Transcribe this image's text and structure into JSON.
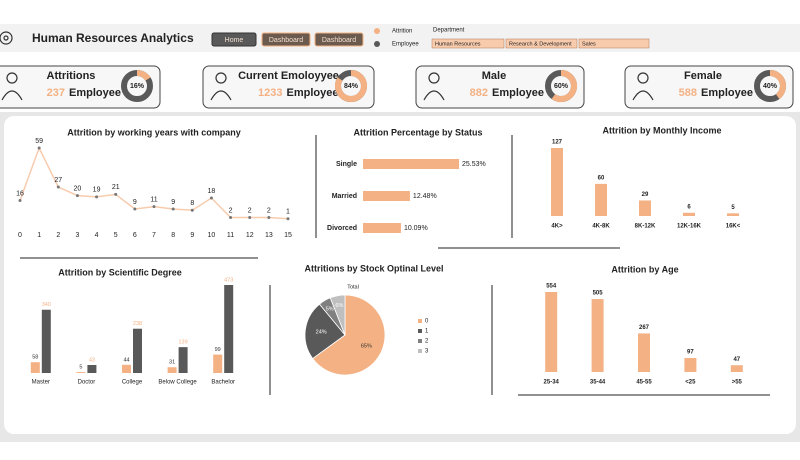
{
  "header": {
    "title": "Human Resources Analytics",
    "nav": [
      "Home",
      "Dashboard",
      "Dashboard"
    ],
    "filter_label": "Department",
    "filter_options": [
      "Human Resources",
      "Research & Development",
      "Sales"
    ]
  },
  "kpis": [
    {
      "title": "Attritions",
      "value": 237,
      "unit": "Employee",
      "percent": 16,
      "percent_label": "16%"
    },
    {
      "title": "Current Emoloyyee",
      "value": 1233,
      "unit": "Employee",
      "percent": 84,
      "percent_label": "84%"
    },
    {
      "title": "Male",
      "value": 882,
      "unit": "Employee",
      "percent": 60,
      "percent_label": "60%"
    },
    {
      "title": "Female",
      "value": 588,
      "unit": "Employee",
      "percent": 40,
      "percent_label": "40%"
    }
  ],
  "chart_data": [
    {
      "type": "line",
      "title": "Attrition by working years with company",
      "categories": [
        "0",
        "1",
        "2",
        "3",
        "4",
        "5",
        "6",
        "7",
        "8",
        "9",
        "10",
        "11",
        "12",
        "13",
        "15"
      ],
      "values": [
        16,
        59,
        27,
        20,
        19,
        21,
        9,
        11,
        9,
        8,
        18,
        2,
        2,
        2,
        1
      ],
      "color": "#f8cbad"
    },
    {
      "type": "hbar",
      "title": "Attrition Percentage by Status",
      "categories": [
        "Single",
        "Married",
        "Divorced"
      ],
      "values": [
        25.53,
        12.48,
        10.09
      ],
      "value_labels": [
        "25.53%",
        "12.48%",
        "10.09%"
      ],
      "color": "#f4b183"
    },
    {
      "type": "bar",
      "title": "Attrition by Monthly Income",
      "categories": [
        "4K>",
        "4K-8K",
        "8K-12K",
        "12K-16K",
        "16K<"
      ],
      "values": [
        127,
        60,
        29,
        6,
        5
      ],
      "color": "#f4b183"
    },
    {
      "type": "grouped",
      "title": "Attrition by Scientific Degree",
      "categories": [
        "Master",
        "Doctor",
        "College",
        "Below College",
        "Bachelor"
      ],
      "series": [
        {
          "name": "Attrition",
          "color": "#f4b183",
          "values": [
            58,
            5,
            44,
            31,
            99
          ]
        },
        {
          "name": "Employee",
          "color": "#595959",
          "values": [
            340,
            43,
            238,
            139,
            473
          ]
        }
      ]
    },
    {
      "type": "pie",
      "title": "Attritions by Stock Optinal Level",
      "series_name": "Total",
      "categories": [
        "0",
        "1",
        "2",
        "3"
      ],
      "values": [
        65,
        24,
        5,
        6
      ],
      "value_labels": [
        "65%",
        "24%",
        "5%",
        "6%"
      ],
      "colors": [
        "#f4b183",
        "#595959",
        "#808080",
        "#bfbfbf"
      ]
    },
    {
      "type": "bar",
      "title": "Attrition by Age",
      "categories": [
        "25-34",
        "35-44",
        "45-55",
        "<25",
        ">55"
      ],
      "values": [
        554,
        505,
        267,
        97,
        47
      ],
      "color": "#f4b183"
    }
  ]
}
